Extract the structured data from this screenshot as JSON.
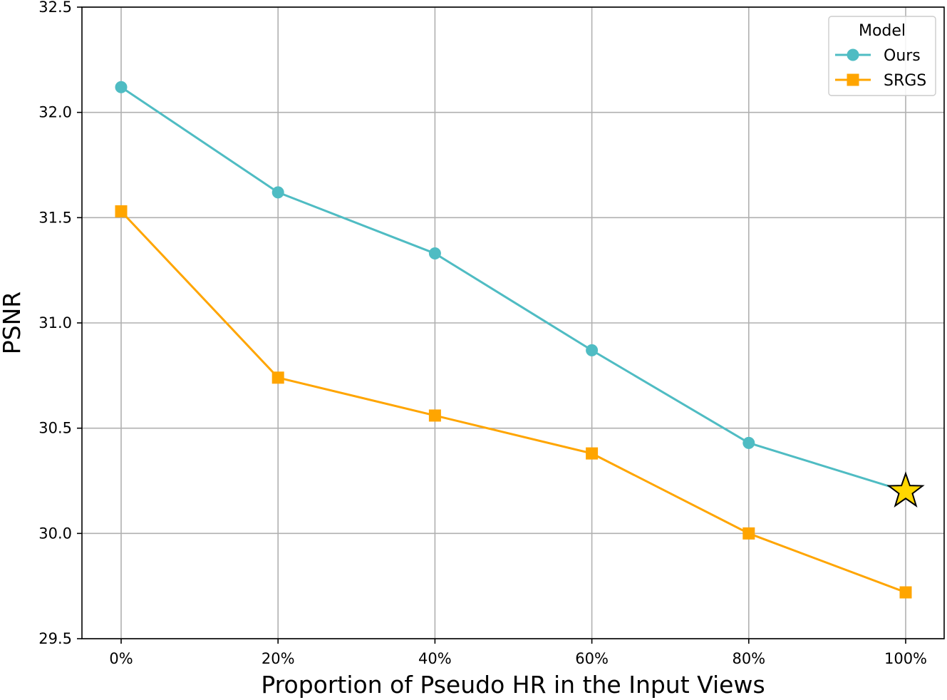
{
  "chart_data": {
    "type": "line",
    "title": "",
    "xlabel": "Proportion of Pseudo HR in the Input Views",
    "ylabel": "PSNR",
    "categories": [
      "0%",
      "20%",
      "40%",
      "60%",
      "80%",
      "100%"
    ],
    "ylim": [
      29.5,
      32.5
    ],
    "yticks": [
      29.5,
      30.0,
      30.5,
      31.0,
      31.5,
      32.0,
      32.5
    ],
    "ytick_labels": [
      "29.5",
      "30.0",
      "30.5",
      "31.0",
      "31.5",
      "32.0",
      "32.5"
    ],
    "grid": true,
    "legend": {
      "title": "Model",
      "placement": "top-right"
    },
    "series": [
      {
        "name": "Ours",
        "values": [
          32.12,
          31.62,
          31.33,
          30.87,
          30.43,
          30.2
        ],
        "color": "#4fbcc3",
        "marker": "circle"
      },
      {
        "name": "SRGS",
        "values": [
          31.53,
          30.74,
          30.56,
          30.38,
          30.0,
          29.72
        ],
        "color": "#ffa500",
        "marker": "square"
      }
    ],
    "annotations": [
      {
        "type": "star-marker",
        "category": "100%",
        "value": 30.2,
        "color": "#ffd700"
      }
    ]
  }
}
